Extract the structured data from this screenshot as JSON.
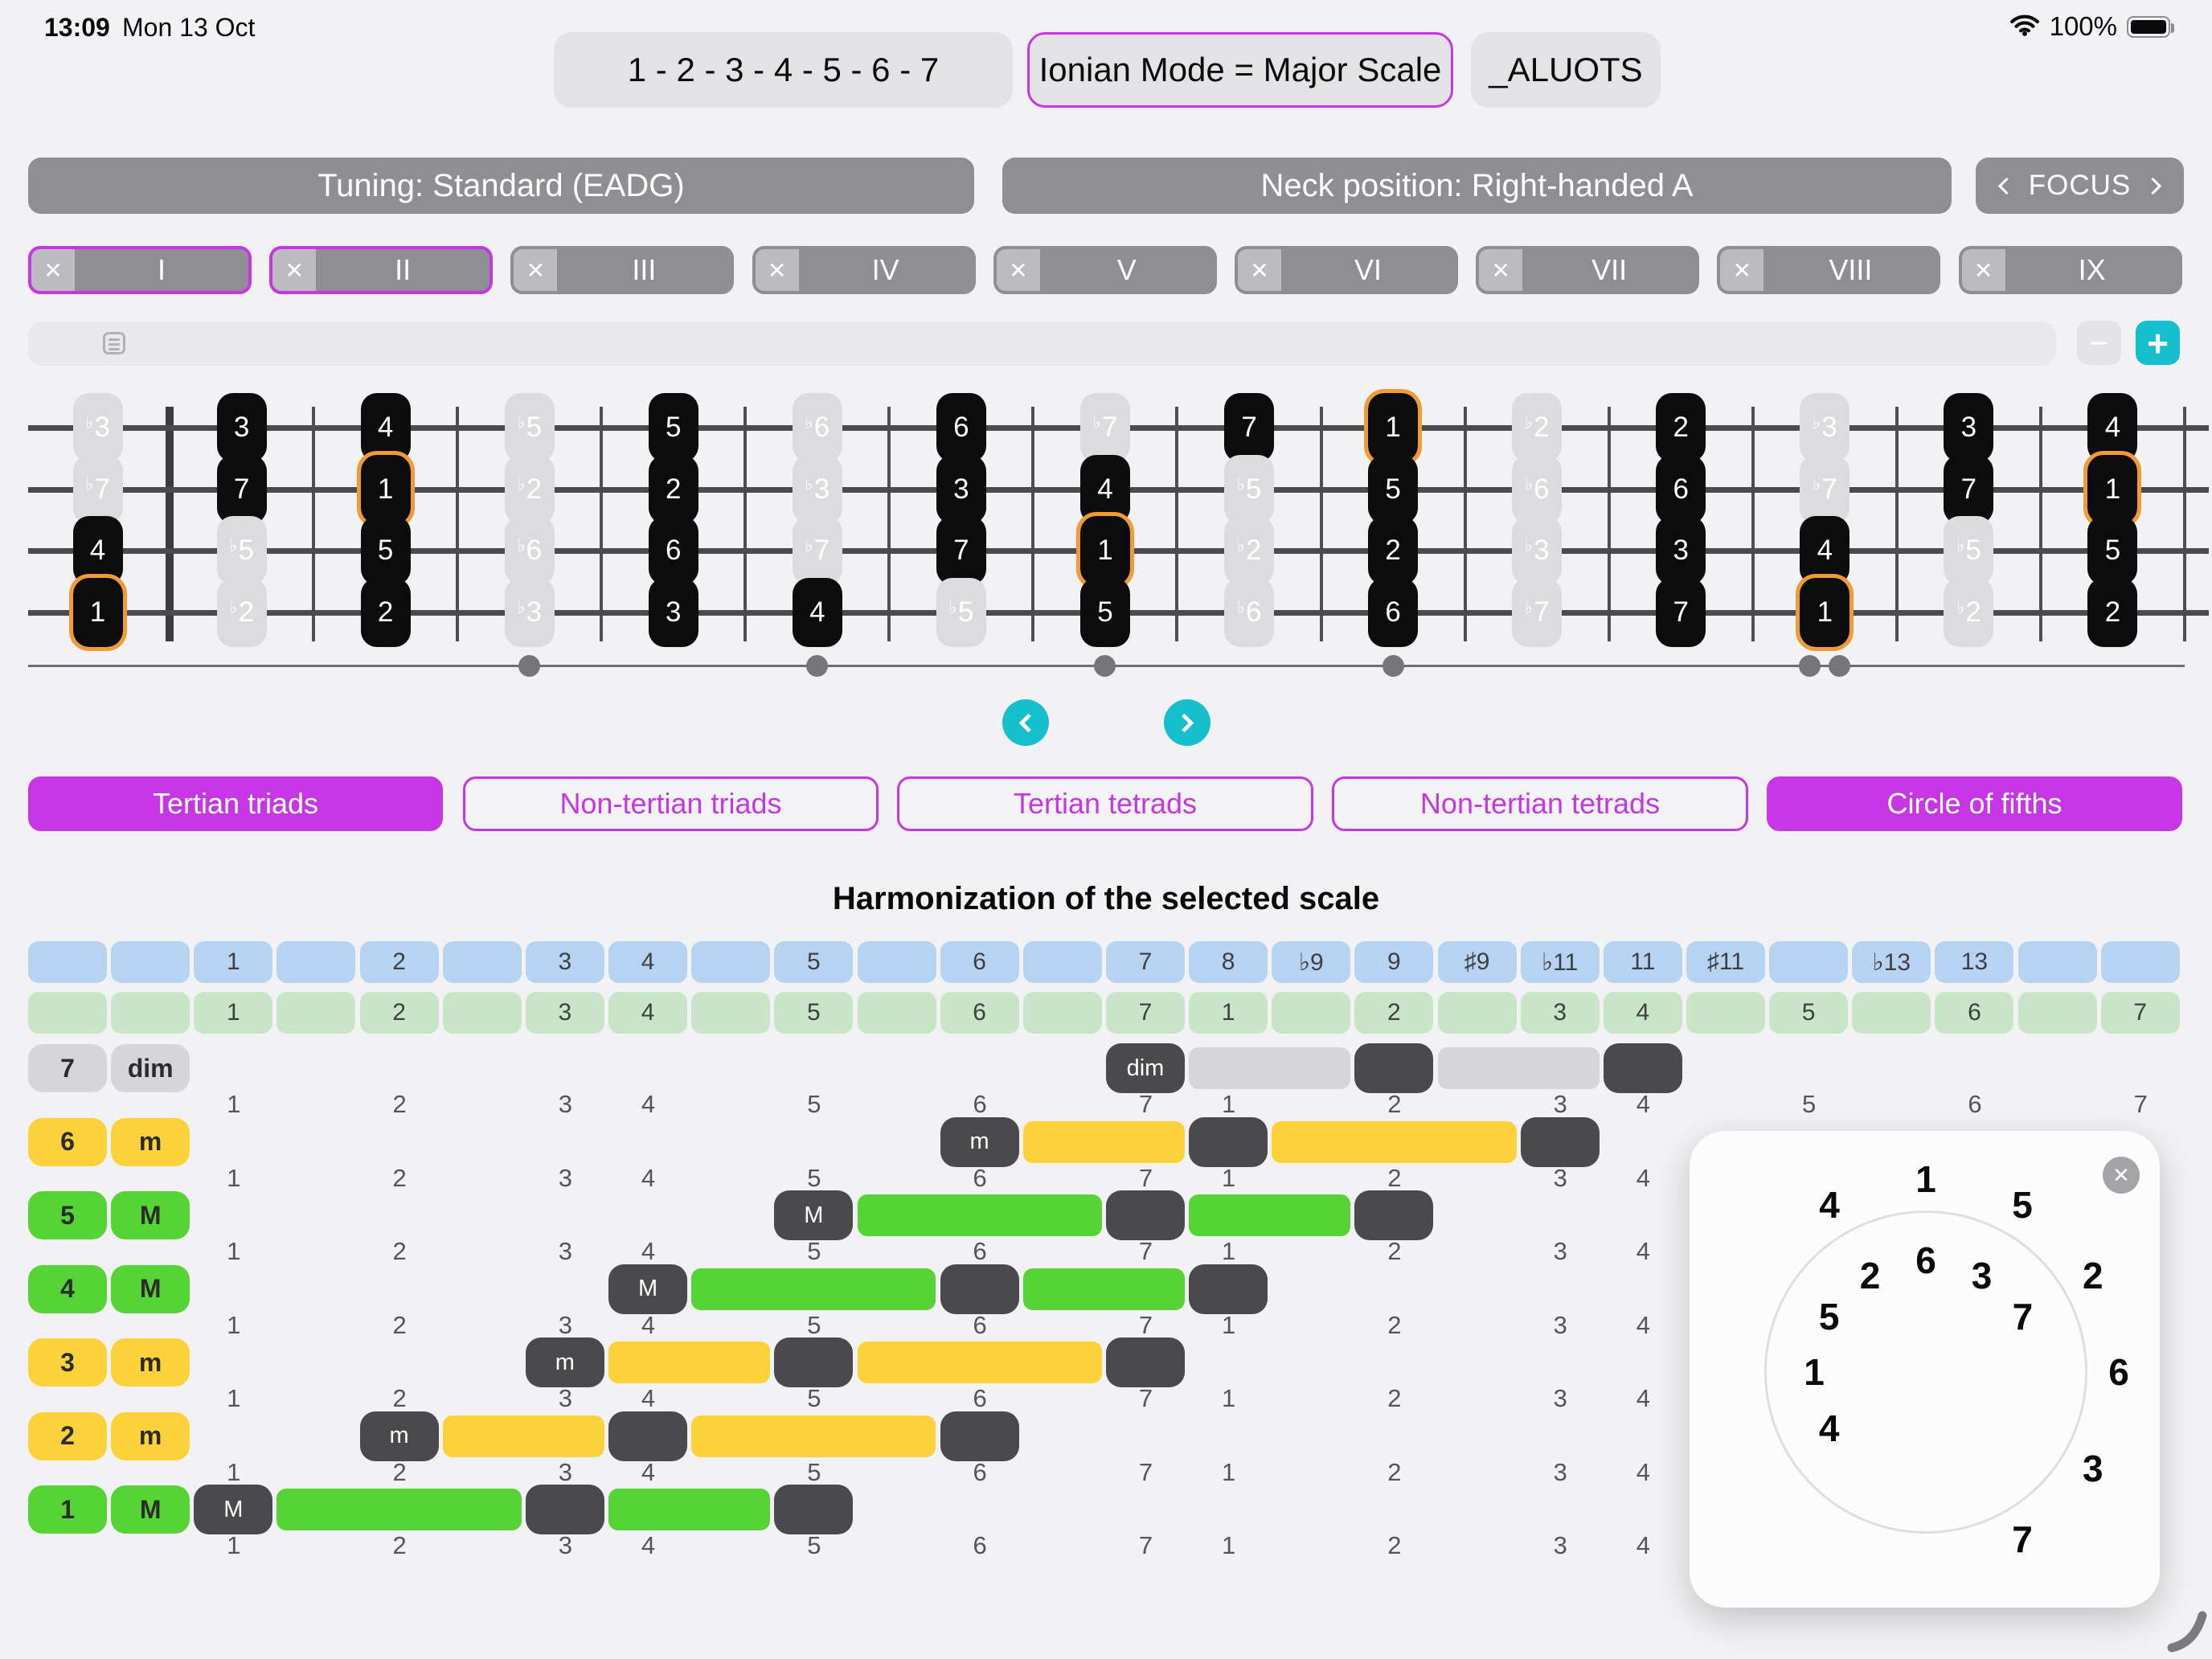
{
  "status_bar": {
    "time": "13:09",
    "date": "Mon 13 Oct",
    "battery_percent": "100%"
  },
  "top_buttons": {
    "scale_degrees": "1 - 2 - 3 - 4 - 5 - 6 - 7",
    "mode": "Ionian Mode = Major Scale",
    "anagram": "_ALUOTS"
  },
  "settings": {
    "tuning": "Tuning: Standard (EADG)",
    "neck_position": "Neck position: Right-handed A",
    "focus_label": "FOCUS"
  },
  "position_tabs": {
    "close_glyph": "✕",
    "items": [
      {
        "label": "I",
        "selected": true
      },
      {
        "label": "II",
        "selected": true
      },
      {
        "label": "III",
        "selected": false
      },
      {
        "label": "IV",
        "selected": false
      },
      {
        "label": "V",
        "selected": false
      },
      {
        "label": "VI",
        "selected": false
      },
      {
        "label": "VII",
        "selected": false
      },
      {
        "label": "VIII",
        "selected": false
      },
      {
        "label": "IX",
        "selected": false
      }
    ]
  },
  "sequence_bar": {
    "minus_label": "−",
    "plus_label": "+"
  },
  "fretboard": {
    "flat_glyph": "♭",
    "strings": [
      {
        "notes": [
          "b3",
          "3",
          "4",
          "b5",
          "5",
          "b6",
          "6",
          "b7",
          "7",
          "1*",
          "b2",
          "2",
          "b3",
          "3",
          "4"
        ]
      },
      {
        "notes": [
          "b7",
          "7",
          "1*",
          "b2",
          "2",
          "b3",
          "3",
          "4",
          "b5",
          "5",
          "b6",
          "6",
          "b7",
          "7",
          "1*"
        ]
      },
      {
        "notes": [
          "4",
          "b5",
          "5",
          "b6",
          "6",
          "b7",
          "7",
          "1*",
          "b2",
          "2",
          "b3",
          "3",
          "4",
          "b5",
          "5"
        ]
      },
      {
        "notes": [
          "1*",
          "b2",
          "2",
          "b3",
          "3",
          "4",
          "b5",
          "5",
          "b6",
          "6",
          "b7",
          "7",
          "1*",
          "b2",
          "2"
        ]
      }
    ],
    "marker_frets": [
      3,
      5,
      7,
      9
    ],
    "double_marker_fret": 12
  },
  "harmony_tabs": [
    {
      "label": "Tertian triads",
      "active": true
    },
    {
      "label": "Non-tertian triads",
      "active": false
    },
    {
      "label": "Tertian tetrads",
      "active": false
    },
    {
      "label": "Non-tertian tetrads",
      "active": false
    },
    {
      "label": "Circle of fifths",
      "active": true
    }
  ],
  "harmonization": {
    "title": "Harmonization of the selected scale",
    "interval_row": [
      "",
      "",
      "1",
      "",
      "2",
      "",
      "3",
      "4",
      "",
      "5",
      "",
      "6",
      "",
      "7",
      "8",
      "♭9",
      "9",
      "♯9",
      "♭11",
      "11",
      "♯11",
      "",
      "♭13",
      "13",
      "",
      ""
    ],
    "scale_row": [
      "",
      "",
      "1",
      "",
      "2",
      "",
      "3",
      "4",
      "",
      "5",
      "",
      "6",
      "",
      "7",
      "1",
      "",
      "2",
      "",
      "3",
      "4",
      "",
      "5",
      "",
      "6",
      "",
      "7"
    ],
    "degree_labels": {
      "columns": [
        2,
        4,
        6,
        7,
        9,
        11,
        13,
        14,
        16,
        18,
        19,
        21,
        23,
        25
      ],
      "values": [
        "1",
        "2",
        "3",
        "4",
        "5",
        "6",
        "7",
        "1",
        "2",
        "3",
        "4",
        "5",
        "6",
        "7"
      ]
    },
    "chords": [
      {
        "degree": "7",
        "quality": "dim",
        "color_key": "dim",
        "root_col": 13,
        "tone_cols": [
          16,
          19
        ]
      },
      {
        "degree": "6",
        "quality": "m",
        "color_key": "minor",
        "root_col": 11,
        "tone_cols": [
          14,
          18
        ]
      },
      {
        "degree": "5",
        "quality": "M",
        "color_key": "major",
        "root_col": 9,
        "tone_cols": [
          13,
          16
        ]
      },
      {
        "degree": "4",
        "quality": "M",
        "color_key": "major",
        "root_col": 7,
        "tone_cols": [
          11,
          14
        ]
      },
      {
        "degree": "3",
        "quality": "m",
        "color_key": "minor",
        "root_col": 6,
        "tone_cols": [
          9,
          13
        ]
      },
      {
        "degree": "2",
        "quality": "m",
        "color_key": "minor",
        "root_col": 4,
        "tone_cols": [
          7,
          11
        ]
      },
      {
        "degree": "1",
        "quality": "M",
        "color_key": "major",
        "root_col": 2,
        "tone_cols": [
          6,
          9
        ]
      }
    ]
  },
  "circle_popup": {
    "close_glyph": "✕",
    "rings": [
      {
        "name": "outer",
        "radius": 240,
        "start_angle_deg": -30,
        "step_deg": 30,
        "values": [
          "4",
          "1",
          "5",
          "2",
          "6",
          "3",
          "7"
        ]
      },
      {
        "name": "inner",
        "radius": 139,
        "start_angle_deg": -120,
        "step_deg": 30,
        "values": [
          "4",
          "1",
          "5",
          "2",
          "6",
          "3",
          "7"
        ]
      }
    ]
  },
  "colors": {
    "page": "#f2f2f4",
    "magenta": "#c636e4",
    "teal": "#15bfcb",
    "orange_root": "#f29a33",
    "major_fill": "#56d335",
    "minor_fill": "#fcd23b",
    "dim_fill": "#d6d6d8",
    "dark_pill": "#4a4a4c",
    "interval_cell": "#b7d3f2",
    "scale_cell": "#c8e6c7"
  }
}
